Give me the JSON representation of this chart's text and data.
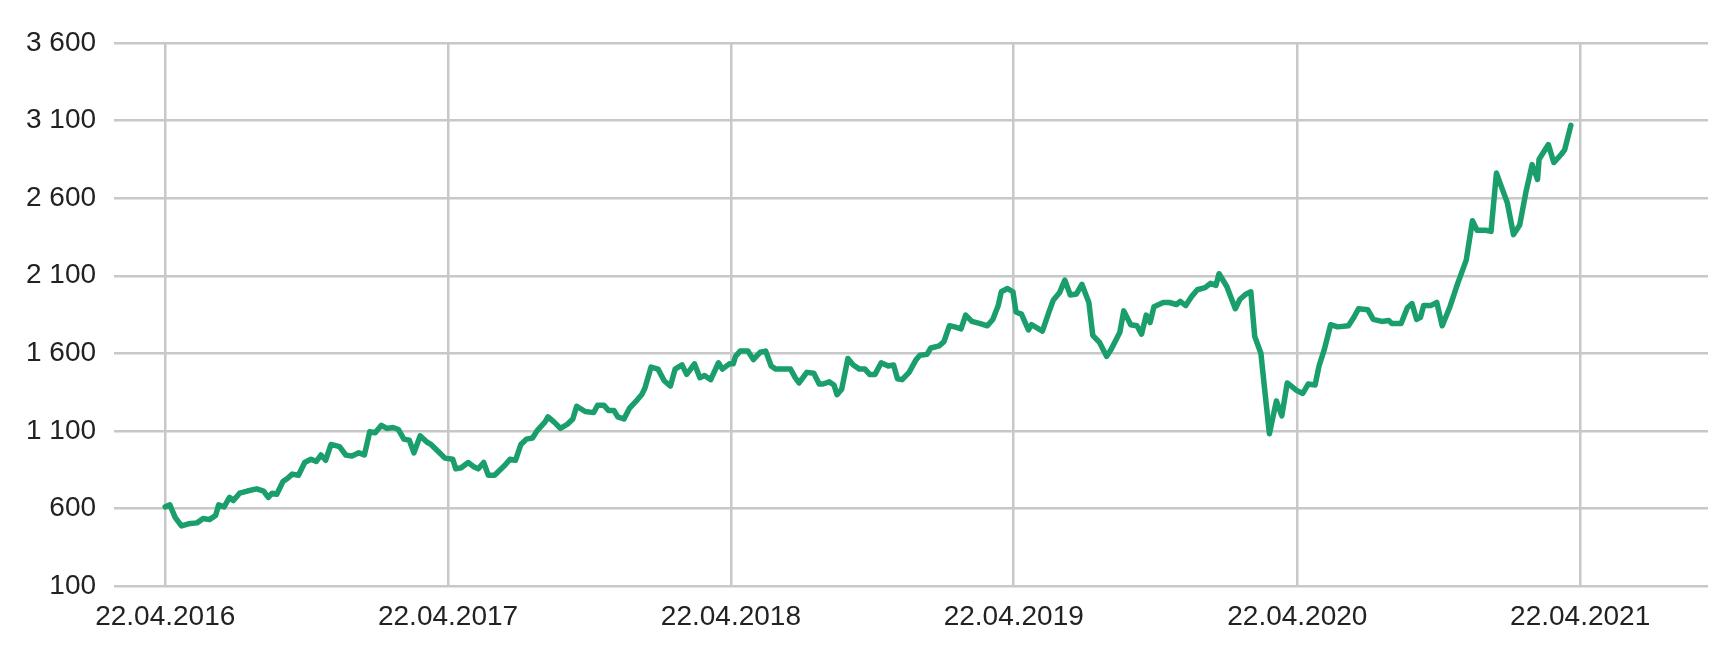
{
  "chart_data": {
    "type": "line",
    "color": "#1a9e6b",
    "grid": true,
    "legend": false,
    "marker": "none",
    "line_style": "solid",
    "xlim": [
      "2016-02-16",
      "2021-10-04"
    ],
    "xticks": [
      {
        "value": "2016-04-22",
        "label": "22.04.2016"
      },
      {
        "value": "2017-04-22",
        "label": "22.04.2017"
      },
      {
        "value": "2018-04-22",
        "label": "22.04.2018"
      },
      {
        "value": "2019-04-22",
        "label": "22.04.2019"
      },
      {
        "value": "2020-04-22",
        "label": "22.04.2020"
      },
      {
        "value": "2021-04-22",
        "label": "22.04.2021"
      }
    ],
    "ylim": [
      100,
      3600
    ],
    "yticks": [
      {
        "value": 100,
        "label": "100"
      },
      {
        "value": 600,
        "label": "600"
      },
      {
        "value": 1100,
        "label": "1 100"
      },
      {
        "value": 1600,
        "label": "1 600"
      },
      {
        "value": 2100,
        "label": "2 100"
      },
      {
        "value": 2600,
        "label": "2 600"
      },
      {
        "value": 3100,
        "label": "3 100"
      },
      {
        "value": 3600,
        "label": "3 600"
      }
    ],
    "x": [
      "2016-04-22",
      "2016-04-28",
      "2016-05-05",
      "2016-05-13",
      "2016-05-22",
      "2016-06-02",
      "2016-06-10",
      "2016-06-18",
      "2016-06-26",
      "2016-06-30",
      "2016-07-07",
      "2016-07-14",
      "2016-07-19",
      "2016-07-27",
      "2016-08-06",
      "2016-08-18",
      "2016-08-27",
      "2016-09-02",
      "2016-09-07",
      "2016-09-13",
      "2016-09-21",
      "2016-09-27",
      "2016-10-03",
      "2016-10-11",
      "2016-10-19",
      "2016-10-27",
      "2016-11-03",
      "2016-11-09",
      "2016-11-15",
      "2016-11-22",
      "2016-12-03",
      "2016-12-11",
      "2016-12-19",
      "2016-12-28",
      "2017-01-04",
      "2017-01-11",
      "2017-01-18",
      "2017-01-26",
      "2017-02-02",
      "2017-02-10",
      "2017-02-17",
      "2017-02-24",
      "2017-03-03",
      "2017-03-09",
      "2017-03-17",
      "2017-03-26",
      "2017-03-31",
      "2017-04-11",
      "2017-04-18",
      "2017-04-28",
      "2017-05-02",
      "2017-05-09",
      "2017-05-18",
      "2017-05-25",
      "2017-05-31",
      "2017-06-07",
      "2017-06-13",
      "2017-06-21",
      "2017-06-28",
      "2017-07-04",
      "2017-07-11",
      "2017-07-18",
      "2017-07-25",
      "2017-08-01",
      "2017-08-09",
      "2017-08-15",
      "2017-08-25",
      "2017-08-29",
      "2017-09-06",
      "2017-09-14",
      "2017-09-23",
      "2017-09-30",
      "2017-10-05",
      "2017-10-16",
      "2017-10-27",
      "2017-11-01",
      "2017-11-09",
      "2017-11-15",
      "2017-11-22",
      "2017-11-27",
      "2017-12-05",
      "2017-12-12",
      "2017-12-21",
      "2017-12-28",
      "2018-01-01",
      "2018-01-09",
      "2018-01-18",
      "2018-01-26",
      "2018-02-03",
      "2018-02-09",
      "2018-02-18",
      "2018-02-24",
      "2018-03-06",
      "2018-03-13",
      "2018-03-19",
      "2018-03-27",
      "2018-04-06",
      "2018-04-11",
      "2018-04-20",
      "2018-04-25",
      "2018-04-28",
      "2018-05-04",
      "2018-05-14",
      "2018-05-21",
      "2018-05-30",
      "2018-06-06",
      "2018-06-13",
      "2018-06-19",
      "2018-06-29",
      "2018-07-08",
      "2018-07-14",
      "2018-07-19",
      "2018-07-29",
      "2018-08-07",
      "2018-08-14",
      "2018-08-19",
      "2018-08-27",
      "2018-09-02",
      "2018-09-06",
      "2018-09-12",
      "2018-09-20",
      "2018-09-27",
      "2018-10-05",
      "2018-10-12",
      "2018-10-18",
      "2018-10-25",
      "2018-11-02",
      "2018-11-11",
      "2018-11-18",
      "2018-11-23",
      "2018-11-29",
      "2018-12-08",
      "2018-12-17",
      "2018-12-22",
      "2018-12-31",
      "2019-01-05",
      "2019-01-16",
      "2019-01-22",
      "2019-01-29",
      "2019-02-05",
      "2019-02-13",
      "2019-02-19",
      "2019-02-27",
      "2019-03-10",
      "2019-03-19",
      "2019-03-26",
      "2019-04-02",
      "2019-04-06",
      "2019-04-14",
      "2019-04-21",
      "2019-04-25",
      "2019-05-02",
      "2019-05-11",
      "2019-05-15",
      "2019-05-22",
      "2019-05-29",
      "2019-06-06",
      "2019-06-12",
      "2019-06-20",
      "2019-06-27",
      "2019-07-04",
      "2019-07-12",
      "2019-07-19",
      "2019-07-28",
      "2019-08-02",
      "2019-08-11",
      "2019-08-20",
      "2019-08-26",
      "2019-09-06",
      "2019-09-11",
      "2019-09-20",
      "2019-09-28",
      "2019-10-04",
      "2019-10-10",
      "2019-10-15",
      "2019-10-20",
      "2019-11-01",
      "2019-11-09",
      "2019-11-18",
      "2019-11-23",
      "2019-11-30",
      "2019-12-08",
      "2019-12-15",
      "2019-12-25",
      "2020-01-01",
      "2020-01-08",
      "2020-01-12",
      "2020-01-22",
      "2020-02-02",
      "2020-02-08",
      "2020-02-16",
      "2020-02-22",
      "2020-02-27",
      "2020-03-06",
      "2020-03-11",
      "2020-03-17",
      "2020-03-26",
      "2020-04-02",
      "2020-04-09",
      "2020-04-21",
      "2020-04-29",
      "2020-05-06",
      "2020-05-15",
      "2020-05-20",
      "2020-05-27",
      "2020-06-04",
      "2020-06-13",
      "2020-06-27",
      "2020-07-04",
      "2020-07-10",
      "2020-07-22",
      "2020-07-29",
      "2020-08-09",
      "2020-08-18",
      "2020-08-22",
      "2020-09-03",
      "2020-09-11",
      "2020-09-17",
      "2020-09-23",
      "2020-09-28",
      "2020-10-02",
      "2020-10-11",
      "2020-10-19",
      "2020-10-26",
      "2020-11-05",
      "2020-11-15",
      "2020-11-26",
      "2020-12-04",
      "2020-12-10",
      "2020-12-21",
      "2020-12-28",
      "2021-01-04",
      "2021-01-14",
      "2021-01-18",
      "2021-01-26",
      "2021-02-03",
      "2021-02-11",
      "2021-02-19",
      "2021-02-26",
      "2021-02-28",
      "2021-03-12",
      "2021-03-19",
      "2021-03-29",
      "2021-04-02",
      "2021-04-10"
    ],
    "values": [
      612,
      625,
      543,
      489,
      503,
      509,
      537,
      530,
      557,
      625,
      612,
      673,
      653,
      700,
      714,
      728,
      714,
      673,
      700,
      693,
      775,
      796,
      823,
      816,
      898,
      919,
      905,
      946,
      912,
      1014,
      1000,
      946,
      939,
      960,
      946,
      1096,
      1089,
      1137,
      1117,
      1123,
      1110,
      1048,
      1041,
      960,
      1069,
      1028,
      1014,
      960,
      926,
      919,
      857,
      864,
      898,
      871,
      857,
      898,
      816,
      816,
      850,
      878,
      919,
      912,
      1014,
      1048,
      1055,
      1103,
      1158,
      1192,
      1158,
      1117,
      1144,
      1178,
      1260,
      1226,
      1219,
      1267,
      1267,
      1233,
      1233,
      1192,
      1178,
      1246,
      1294,
      1335,
      1376,
      1512,
      1499,
      1424,
      1390,
      1499,
      1526,
      1465,
      1533,
      1444,
      1458,
      1431,
      1540,
      1499,
      1533,
      1533,
      1581,
      1615,
      1615,
      1560,
      1608,
      1615,
      1519,
      1499,
      1499,
      1499,
      1444,
      1410,
      1478,
      1472,
      1403,
      1403,
      1417,
      1397,
      1335,
      1369,
      1567,
      1526,
      1499,
      1499,
      1465,
      1465,
      1540,
      1519,
      1526,
      1437,
      1431,
      1478,
      1560,
      1588,
      1594,
      1635,
      1649,
      1676,
      1778,
      1771,
      1758,
      1847,
      1806,
      1792,
      1778,
      1819,
      1908,
      1997,
      2018,
      1997,
      1867,
      1853,
      1751,
      1785,
      1765,
      1744,
      1860,
      1942,
      1990,
      2072,
      1976,
      1983,
      2045,
      1928,
      1717,
      1669,
      1581,
      1628,
      1737,
      1874,
      1785,
      1778,
      1724,
      1847,
      1799,
      1901,
      1928,
      1928,
      1915,
      1935,
      1908,
      1969,
      2010,
      2024,
      2051,
      2038,
      2113,
      2031,
      1888,
      1949,
      1983,
      1997,
      1710,
      1601,
      1362,
      1083,
      1294,
      1198,
      1410,
      1362,
      1342,
      1403,
      1397,
      1519,
      1628,
      1785,
      1771,
      1778,
      1833,
      1888,
      1881,
      1819,
      1806,
      1812,
      1792,
      1792,
      1894,
      1921,
      1819,
      1833,
      1908,
      1908,
      1928,
      1778,
      1901,
      2051,
      2201,
      2454,
      2393,
      2393,
      2386,
      2761,
      2624,
      2570,
      2365,
      2427,
      2638,
      2816,
      2720,
      2850,
      2945,
      2829,
      2884,
      2911,
      3068
    ]
  }
}
